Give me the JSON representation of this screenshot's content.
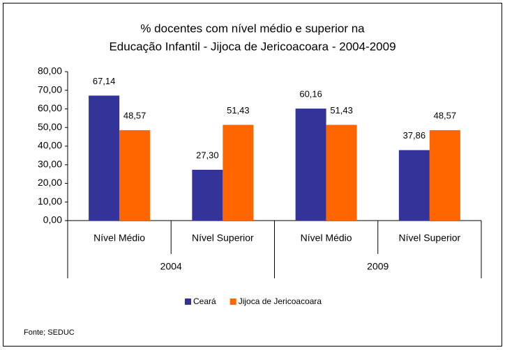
{
  "chart_data": {
    "type": "bar",
    "title": [
      "% docentes com nível médio e superior na",
      "Educação Infantil - Jijoca de Jericoacoara - 2004-2009"
    ],
    "categories": [
      "Nível Médio",
      "Nível Superior",
      "Nível Médio",
      "Nível Superior"
    ],
    "groups": [
      "2004",
      "2009"
    ],
    "series": [
      {
        "name": "Ceará",
        "color": "#333399",
        "values": [
          67.14,
          27.3,
          60.16,
          37.86
        ],
        "value_labels": [
          "67,14",
          "27,30",
          "60,16",
          "37,86"
        ]
      },
      {
        "name": "Jijoca de Jericoacoara",
        "color": "#ff6600",
        "values": [
          48.57,
          51.43,
          51.43,
          48.57
        ],
        "value_labels": [
          "48,57",
          "51,43",
          "51,43",
          "48,57"
        ]
      }
    ],
    "ylim": [
      0,
      80
    ],
    "yticks": [
      {
        "value": 0,
        "label": "0,00"
      },
      {
        "value": 10,
        "label": "10,00"
      },
      {
        "value": 20,
        "label": "20,00"
      },
      {
        "value": 30,
        "label": "30,00"
      },
      {
        "value": 40,
        "label": "40,00"
      },
      {
        "value": 50,
        "label": "50,00"
      },
      {
        "value": 60,
        "label": "60,00"
      },
      {
        "value": 70,
        "label": "70,00"
      },
      {
        "value": 80,
        "label": "80,00"
      }
    ],
    "legend": "bottom",
    "source": "Fonte; SEDUC"
  }
}
